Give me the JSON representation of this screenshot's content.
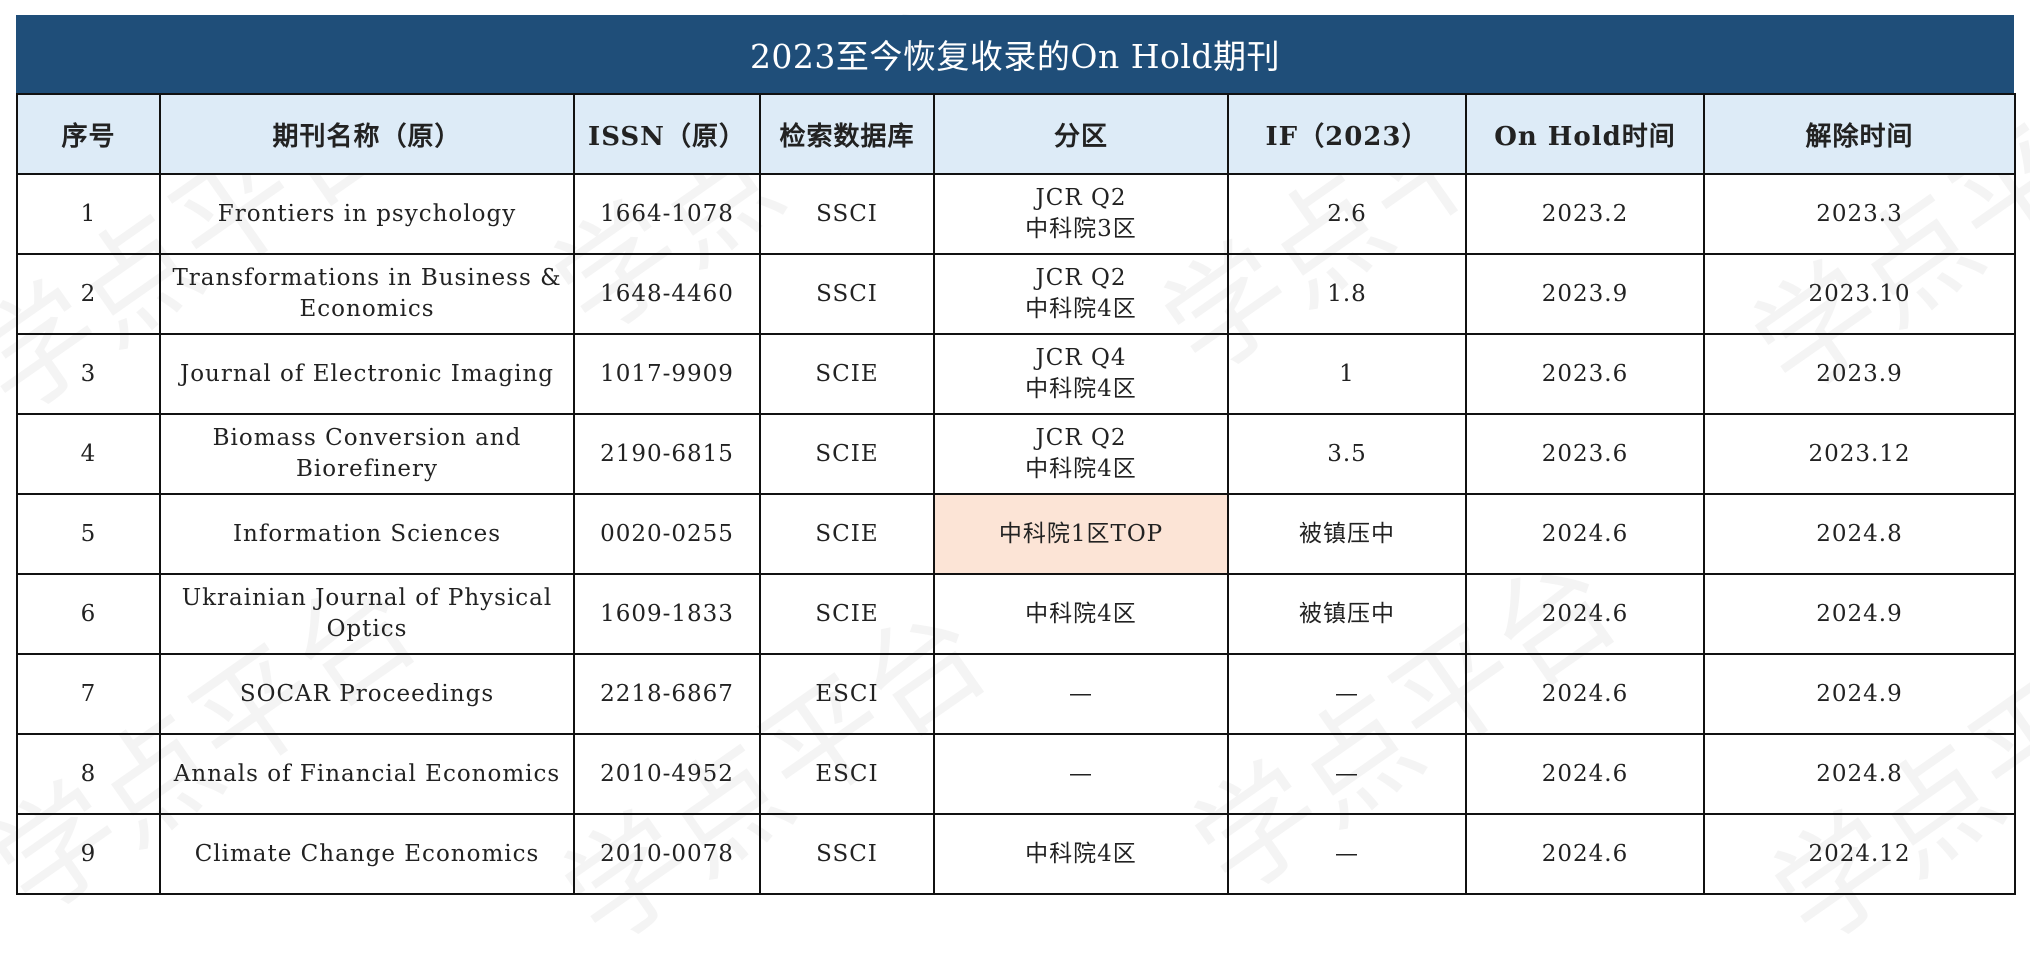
{
  "title": "2023至今恢复收录的On Hold期刊",
  "headers": [
    "序号",
    "期刊名称（原）",
    "ISSN（原）",
    "检索数据库",
    "分区",
    "IF（2023）",
    "On Hold时间",
    "解除时间"
  ],
  "rows": [
    {
      "no": "1",
      "name": "Frontiers in psychology",
      "issn": "1664-1078",
      "db": "SSCI",
      "zone1": "JCR Q2",
      "zone2": "中科院3区",
      "if": "2.6",
      "hold": "2023.2",
      "lift": "2023.3"
    },
    {
      "no": "2",
      "name": "Transformations in Business & Economics",
      "issn": "1648-4460",
      "db": "SSCI",
      "zone1": "JCR Q2",
      "zone2": "中科院4区",
      "if": "1.8",
      "hold": "2023.9",
      "lift": "2023.10"
    },
    {
      "no": "3",
      "name": "Journal of Electronic Imaging",
      "issn": "1017-9909",
      "db": "SCIE",
      "zone1": "JCR Q4",
      "zone2": "中科院4区",
      "if": "1",
      "hold": "2023.6",
      "lift": "2023.9"
    },
    {
      "no": "4",
      "name": "Biomass Conversion and Biorefinery",
      "issn": "2190-6815",
      "db": "SCIE",
      "zone1": "JCR Q2",
      "zone2": "中科院4区",
      "if": "3.5",
      "hold": "2023.6",
      "lift": "2023.12"
    },
    {
      "no": "5",
      "name": "Information Sciences",
      "issn": "0020-0255",
      "db": "SCIE",
      "zone1": "中科院1区TOP",
      "zone2": "",
      "if": "被镇压中",
      "hold": "2024.6",
      "lift": "2024.8",
      "highlight": true
    },
    {
      "no": "6",
      "name": "Ukrainian Journal of Physical Optics",
      "issn": "1609-1833",
      "db": "SCIE",
      "zone1": "中科院4区",
      "zone2": "",
      "if": "被镇压中",
      "hold": "2024.6",
      "lift": "2024.9"
    },
    {
      "no": "7",
      "name": "SOCAR Proceedings",
      "issn": "2218-6867",
      "db": "ESCI",
      "zone1": "—",
      "zone2": "",
      "if": "—",
      "hold": "2024.6",
      "lift": "2024.9"
    },
    {
      "no": "8",
      "name": "Annals of Financial Economics",
      "issn": "2010-4952",
      "db": "ESCI",
      "zone1": "—",
      "zone2": "",
      "if": "—",
      "hold": "2024.6",
      "lift": "2024.8"
    },
    {
      "no": "9",
      "name": "Climate Change Economics",
      "issn": "2010-0078",
      "db": "SSCI",
      "zone1": "中科院4区",
      "zone2": "",
      "if": "—",
      "hold": "2024.6",
      "lift": "2024.12"
    }
  ],
  "watermark": "学点平台",
  "colors": {
    "title_bg": "#1f4e79",
    "header_bg": "#ddebf7",
    "highlight_bg": "#fce4d6"
  }
}
